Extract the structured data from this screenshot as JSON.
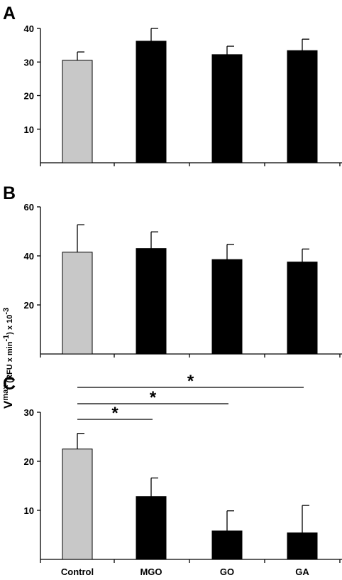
{
  "chart_data": {
    "type": "bar",
    "categories": [
      "Control",
      "MGO",
      "GO",
      "GA"
    ],
    "ylabel": {
      "symbol": "V",
      "superscript": "max",
      "units": "(RFU x min",
      "units_sup": "-1",
      "units_end": ") x 10",
      "exp_sup": "-3"
    },
    "colors": {
      "control": "#c8c8c8",
      "treatment": "#000000"
    },
    "panels": [
      {
        "label": "A",
        "ylim": [
          0,
          40
        ],
        "yticks": [
          "10",
          "20",
          "30",
          "40"
        ],
        "values": [
          30.5,
          36.2,
          32.2,
          33.4
        ],
        "errors": [
          2.5,
          3.8,
          2.5,
          3.4
        ],
        "significance": []
      },
      {
        "label": "B",
        "ylim": [
          0,
          60
        ],
        "yticks": [
          "20",
          "40",
          "60"
        ],
        "values": [
          41.5,
          43.0,
          38.5,
          37.5
        ],
        "errors": [
          11.2,
          6.8,
          6.2,
          5.3
        ],
        "significance": []
      },
      {
        "label": "C",
        "ylim": [
          0,
          30
        ],
        "yticks": [
          "10",
          "20",
          "30"
        ],
        "values": [
          22.5,
          12.8,
          5.8,
          5.4
        ],
        "errors": [
          3.2,
          3.8,
          4.1,
          5.6
        ],
        "significance": [
          {
            "from": 0,
            "to": 1,
            "mark": "*"
          },
          {
            "from": 0,
            "to": 2,
            "mark": "*"
          },
          {
            "from": 0,
            "to": 3,
            "mark": "*"
          }
        ]
      }
    ],
    "grid": false,
    "legend": "none"
  }
}
